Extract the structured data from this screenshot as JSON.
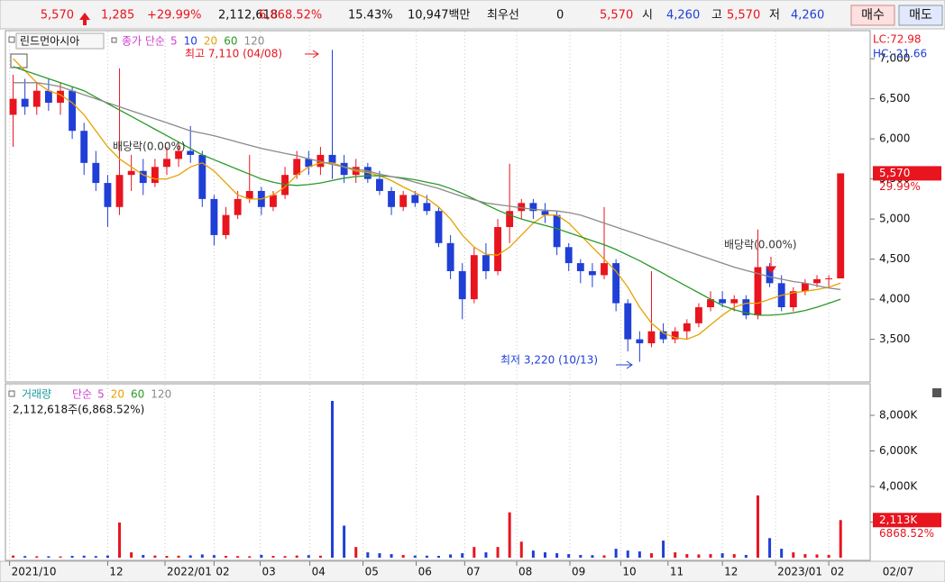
{
  "header": {
    "items": [
      {
        "text": "5,570",
        "color": "#e8141e"
      },
      {
        "text": "1,285",
        "color": "#e8141e"
      },
      {
        "text": "+29.99%",
        "color": "#e8141e"
      },
      {
        "text": "2,112,618",
        "color": "#111111"
      },
      {
        "text": "6,868.52%",
        "color": "#e8141e"
      },
      {
        "text": "15.43%",
        "color": "#111111"
      },
      {
        "text": "10,947백만",
        "color": "#111111"
      },
      {
        "text": "최우선",
        "color": "#111111"
      },
      {
        "text": "0",
        "color": "#111111"
      },
      {
        "text": "5,570",
        "color": "#e8141e"
      },
      {
        "text": "시",
        "color": "#111111"
      },
      {
        "text": "4,260",
        "color": "#1f3fd6"
      },
      {
        "text": "고",
        "color": "#111111"
      },
      {
        "text": "5,570",
        "color": "#e8141e"
      },
      {
        "text": "저",
        "color": "#111111"
      },
      {
        "text": "4,260",
        "color": "#1f3fd6"
      }
    ],
    "buttons": [
      "매수",
      "매도"
    ]
  },
  "cursor_date": "02/07",
  "chart_data": [
    {
      "type": "candlestick",
      "title": "린드먼아시아",
      "ma_label": "종가 단순",
      "up_color": "#e8141e",
      "down_color": "#1f3fd6",
      "xlim": [
        0,
        73
      ],
      "ylim": [
        2990,
        7350
      ],
      "yticks": [
        {
          "value": 3500,
          "label": "3,500"
        },
        {
          "value": 4000,
          "label": "4,000"
        },
        {
          "value": 4500,
          "label": "4,500"
        },
        {
          "value": 5000,
          "label": "5,000"
        },
        {
          "value": 5500,
          "label": "5,500"
        },
        {
          "value": 6000,
          "label": "6,000"
        },
        {
          "value": 6500,
          "label": "6,500"
        },
        {
          "value": 7000,
          "label": "7,000"
        }
      ],
      "open": [
        6300,
        6500,
        6400,
        6600,
        6450,
        6600,
        6100,
        5700,
        5450,
        5150,
        5550,
        5600,
        5450,
        5650,
        5750,
        5850,
        5800,
        5250,
        4800,
        5050,
        5250,
        5350,
        5150,
        5300,
        5550,
        5750,
        5650,
        5800,
        5700,
        5550,
        5650,
        5500,
        5350,
        5150,
        5300,
        5200,
        5100,
        4700,
        4350,
        4000,
        4550,
        4350,
        4900,
        5100,
        5200,
        5100,
        5050,
        4650,
        4450,
        4350,
        4300,
        4450,
        3950,
        3500,
        3450,
        3600,
        3500,
        3600,
        3700,
        3900,
        4000,
        3950,
        4000,
        3800,
        4400,
        4200,
        3900,
        4100,
        4200,
        4250,
        4260
      ],
      "high": [
        6800,
        6750,
        6700,
        6750,
        6700,
        6650,
        6200,
        5850,
        5550,
        6880,
        5800,
        5750,
        5750,
        5900,
        5950,
        6160,
        5850,
        5300,
        5150,
        5350,
        5800,
        5400,
        5350,
        5650,
        5850,
        5850,
        5900,
        7110,
        5800,
        5750,
        5700,
        5600,
        5400,
        5350,
        5350,
        5300,
        5150,
        4800,
        4450,
        4650,
        4700,
        5000,
        5690,
        5250,
        5250,
        5200,
        5100,
        4700,
        4500,
        4450,
        5150,
        4500,
        4000,
        3600,
        4350,
        3700,
        3650,
        3750,
        3950,
        4100,
        4100,
        4050,
        4050,
        4870,
        4450,
        4300,
        4150,
        4250,
        4300,
        4300,
        5570
      ],
      "low": [
        5900,
        6300,
        6300,
        6350,
        6300,
        6000,
        5550,
        5350,
        4900,
        5050,
        5350,
        5300,
        5400,
        5550,
        5650,
        5700,
        5150,
        4670,
        4750,
        5000,
        5200,
        5050,
        5100,
        5250,
        5500,
        5550,
        5550,
        5500,
        5450,
        5450,
        5450,
        5300,
        5050,
        5100,
        5150,
        5050,
        4650,
        4250,
        3750,
        3950,
        4250,
        4300,
        4700,
        5000,
        5000,
        4950,
        4550,
        4350,
        4200,
        4150,
        4250,
        3850,
        3350,
        3220,
        3400,
        3450,
        3450,
        3500,
        3650,
        3850,
        3900,
        3850,
        3750,
        3750,
        4150,
        3850,
        3850,
        4050,
        4150,
        4150,
        4260
      ],
      "close": [
        6500,
        6400,
        6600,
        6450,
        6600,
        6100,
        5700,
        5450,
        5150,
        5550,
        5600,
        5450,
        5650,
        5750,
        5850,
        5800,
        5250,
        4800,
        5050,
        5250,
        5350,
        5150,
        5300,
        5550,
        5750,
        5650,
        5800,
        5700,
        5550,
        5650,
        5500,
        5350,
        5150,
        5300,
        5200,
        5100,
        4700,
        4350,
        4000,
        4550,
        4350,
        4900,
        5100,
        5200,
        5100,
        5050,
        4650,
        4450,
        4350,
        4300,
        4450,
        3950,
        3500,
        3450,
        3600,
        3500,
        3600,
        3700,
        3900,
        4000,
        3950,
        4000,
        3800,
        4400,
        4200,
        3900,
        4100,
        4200,
        4250,
        4260,
        5570
      ],
      "series": [
        {
          "name": "5",
          "color": "#d040d0"
        },
        {
          "name": "10",
          "color": "#2040e0"
        },
        {
          "name": "20",
          "color": "#e8a000",
          "values": [
            7000,
            6850,
            6700,
            6600,
            6550,
            6450,
            6300,
            6100,
            5900,
            5750,
            5650,
            5550,
            5500,
            5500,
            5550,
            5650,
            5700,
            5600,
            5450,
            5300,
            5250,
            5250,
            5300,
            5400,
            5550,
            5650,
            5700,
            5700,
            5650,
            5600,
            5580,
            5540,
            5480,
            5400,
            5330,
            5260,
            5150,
            5000,
            4800,
            4650,
            4560,
            4550,
            4650,
            4800,
            4950,
            5050,
            5050,
            4950,
            4800,
            4650,
            4500,
            4350,
            4150,
            3900,
            3700,
            3580,
            3520,
            3500,
            3560,
            3680,
            3800,
            3900,
            3950,
            3950,
            4000,
            4050,
            4080,
            4100,
            4120,
            4150,
            4200
          ]
        },
        {
          "name": "60",
          "color": "#2a9a2a",
          "values": [
            6900,
            6850,
            6800,
            6750,
            6700,
            6650,
            6600,
            6520,
            6440,
            6360,
            6280,
            6200,
            6120,
            6040,
            5960,
            5880,
            5800,
            5740,
            5680,
            5620,
            5560,
            5500,
            5460,
            5430,
            5420,
            5430,
            5450,
            5480,
            5510,
            5530,
            5540,
            5540,
            5530,
            5510,
            5490,
            5460,
            5430,
            5380,
            5320,
            5250,
            5180,
            5110,
            5050,
            5000,
            4960,
            4920,
            4880,
            4830,
            4780,
            4730,
            4680,
            4620,
            4550,
            4480,
            4400,
            4320,
            4240,
            4160,
            4080,
            4000,
            3920,
            3870,
            3830,
            3800,
            3800,
            3810,
            3830,
            3860,
            3900,
            3950,
            4000
          ]
        },
        {
          "name": "120",
          "color": "#8a8a8a",
          "values": [
            6700,
            6700,
            6700,
            6680,
            6650,
            6600,
            6550,
            6500,
            6450,
            6400,
            6350,
            6300,
            6250,
            6200,
            6150,
            6100,
            6070,
            6040,
            6000,
            5960,
            5920,
            5880,
            5850,
            5820,
            5790,
            5750,
            5720,
            5680,
            5650,
            5620,
            5600,
            5560,
            5530,
            5500,
            5460,
            5420,
            5380,
            5330,
            5280,
            5240,
            5200,
            5180,
            5160,
            5140,
            5120,
            5110,
            5100,
            5080,
            5050,
            5000,
            4950,
            4900,
            4850,
            4800,
            4750,
            4700,
            4650,
            4600,
            4550,
            4500,
            4450,
            4400,
            4360,
            4320,
            4280,
            4250,
            4220,
            4200,
            4170,
            4140,
            4120
          ]
        }
      ],
      "annotations": [
        {
          "text": "최고 7,110 (04/08)",
          "color": "#e8141e"
        },
        {
          "text": "최저 3,220 (10/13)",
          "color": "#1f3fd6"
        },
        {
          "text": "배당락(0.00%)",
          "color": "#333333"
        },
        {
          "text": "배당락(0.00%)",
          "color": "#333333"
        }
      ],
      "side_notes": [
        {
          "text": "LC:72.98",
          "color": "#e8141e"
        },
        {
          "text": "HC:-21.66",
          "color": "#1f3fd6"
        }
      ],
      "current": {
        "value": 5570,
        "label": "5,570",
        "change": "29.99%"
      }
    },
    {
      "type": "bar",
      "title": "거래량",
      "ma_label": "단순",
      "summary": "2,112,618주(6,868.52%)",
      "xlim": [
        0,
        73
      ],
      "ylim": [
        0,
        9670
      ],
      "yticks": [
        {
          "value": 2000,
          "label": "2,000K"
        },
        {
          "value": 4000,
          "label": "4,000K"
        },
        {
          "value": 6000,
          "label": "6,000K"
        },
        {
          "value": 8000,
          "label": "8,000K"
        }
      ],
      "xticks": [
        {
          "value": 0.2,
          "label": "2021/10"
        },
        {
          "value": 8.5,
          "label": "12"
        },
        {
          "value": 13.35,
          "label": "2022/01"
        },
        {
          "value": 17.5,
          "label": "02"
        },
        {
          "value": 21.4,
          "label": "03"
        },
        {
          "value": 25.6,
          "label": "04"
        },
        {
          "value": 30.1,
          "label": "05"
        },
        {
          "value": 34.6,
          "label": "06"
        },
        {
          "value": 38.7,
          "label": "07"
        },
        {
          "value": 43.1,
          "label": "08"
        },
        {
          "value": 47.6,
          "label": "09"
        },
        {
          "value": 51.9,
          "label": "10"
        },
        {
          "value": 55.9,
          "label": "11"
        },
        {
          "value": 60.5,
          "label": "12"
        },
        {
          "value": 65.0,
          "label": "2023/01"
        },
        {
          "value": 69.5,
          "label": "02"
        }
      ],
      "values": [
        120,
        90,
        80,
        80,
        70,
        100,
        110,
        90,
        120,
        1975,
        300,
        150,
        120,
        100,
        110,
        130,
        180,
        140,
        100,
        90,
        80,
        160,
        100,
        90,
        120,
        140,
        110,
        8810,
        1800,
        600,
        300,
        250,
        200,
        150,
        120,
        110,
        100,
        180,
        250,
        600,
        300,
        600,
        2550,
        900,
        400,
        300,
        250,
        200,
        150,
        140,
        130,
        500,
        400,
        350,
        250,
        960,
        300,
        200,
        180,
        200,
        250,
        200,
        150,
        3500,
        1100,
        500,
        300,
        200,
        180,
        150,
        2113
      ],
      "series": [
        {
          "name": "5",
          "color": "#d040d0"
        },
        {
          "name": "20",
          "color": "#e8a000"
        },
        {
          "name": "60",
          "color": "#2a9a2a"
        },
        {
          "name": "120",
          "color": "#8a8a8a"
        }
      ],
      "current": {
        "value": 2113,
        "label": "2,113K",
        "change": "6868.52%"
      }
    }
  ]
}
